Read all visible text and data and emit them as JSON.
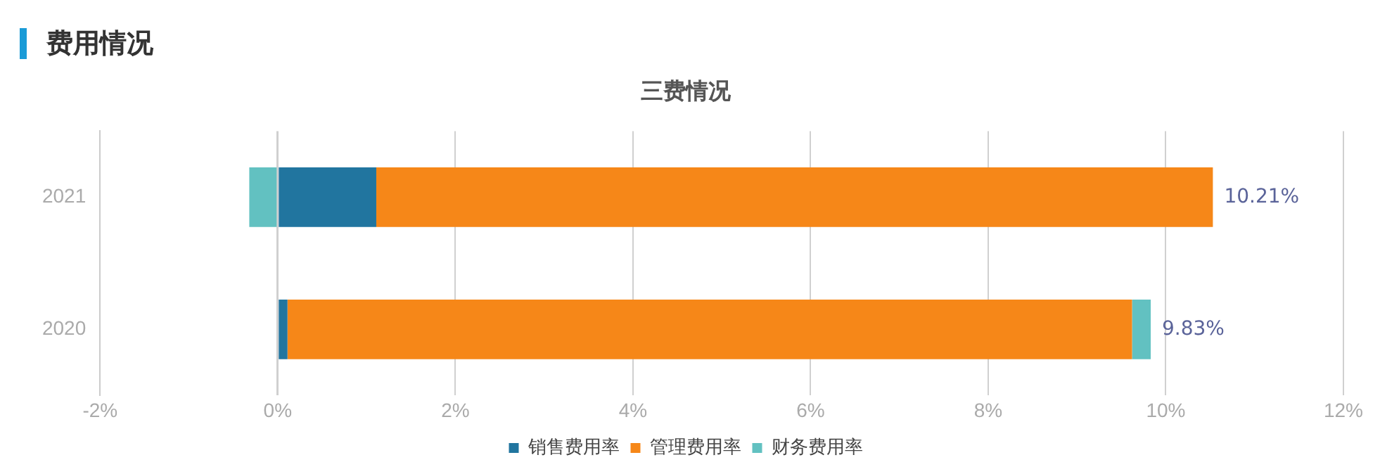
{
  "chart_data": {
    "type": "bar",
    "orientation": "horizontal",
    "stacked": true,
    "title": "费用情况",
    "subtitle": "三费情况",
    "categories": [
      "2021",
      "2020"
    ],
    "series": [
      {
        "name": "销售费用率",
        "color": "#21759f",
        "values": [
          1.11,
          0.11
        ]
      },
      {
        "name": "管理费用率",
        "color": "#f68718",
        "values": [
          9.42,
          9.51
        ]
      },
      {
        "name": "财务费用率",
        "color": "#62c1c1",
        "values": [
          -0.32,
          0.21
        ]
      }
    ],
    "totals": [
      "10.21%",
      "9.83%"
    ],
    "xlim": [
      -2,
      12
    ],
    "xticks": [
      {
        "value": -2,
        "label": "-2%"
      },
      {
        "value": 0,
        "label": "0%"
      },
      {
        "value": 2,
        "label": "2%"
      },
      {
        "value": 4,
        "label": "4%"
      },
      {
        "value": 6,
        "label": "6%"
      },
      {
        "value": 8,
        "label": "8%"
      },
      {
        "value": 10,
        "label": "10%"
      },
      {
        "value": 12,
        "label": "12%"
      }
    ],
    "grid": "x",
    "legend": "bottom"
  }
}
